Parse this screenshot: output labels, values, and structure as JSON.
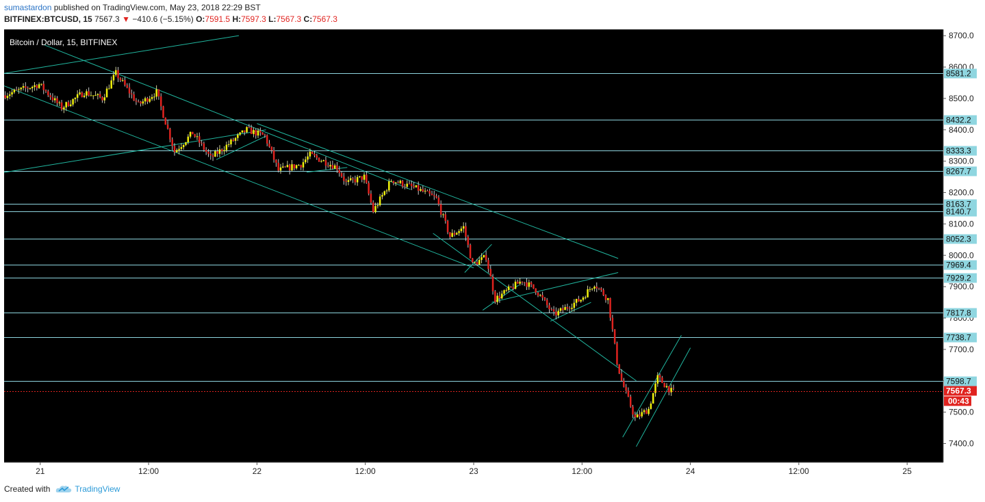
{
  "header": {
    "author": "sumastardon",
    "published_text": "published on TradingView.com, May 23, 2018 22:29 BST",
    "symbol": "BITFINEX:BTCUSD, 15",
    "last": "7567.3",
    "change": "−410.6 (−5.15%)",
    "o_label": "O:",
    "o": "7591.5",
    "h_label": "H:",
    "h": "7597.3",
    "l_label": "L:",
    "l": "7567.3",
    "c_label": "C:",
    "c": "7567.3"
  },
  "footer": {
    "created_with": "Created with",
    "brand": "TradingView"
  },
  "colors": {
    "background": "#000000",
    "up": "#f2f20a",
    "down": "#e0231f",
    "level_line": "#8fd6e0",
    "trend_line": "#21b7a0",
    "price_badge": "#e0231f",
    "level_label_bg": "#8fd6e0"
  },
  "chart_data": {
    "type": "candlestick",
    "title": "Bitcoin / Dollar, 15, BITFINEX",
    "ylim": [
      7340,
      8720
    ],
    "yticks": [
      7400,
      7500,
      7600,
      7700,
      7800,
      7900,
      8000,
      8100,
      8200,
      8300,
      8400,
      8500,
      8600,
      8700
    ],
    "ytick_labels": [
      "7400.0",
      "7500.0",
      "7600.0",
      "7700.0",
      "7800.0",
      "7900.0",
      "8000.0",
      "8100.0",
      "8200.0",
      "8300.0",
      "8400.0",
      "8500.0",
      "8600.0",
      "8700.0"
    ],
    "x_start": "2018-05-20T20:00",
    "x_end": "2018-05-25T04:00",
    "xticks": [
      {
        "t": "2018-05-21T00:00",
        "label": "21"
      },
      {
        "t": "2018-05-21T12:00",
        "label": "12:00"
      },
      {
        "t": "2018-05-22T00:00",
        "label": "22"
      },
      {
        "t": "2018-05-22T12:00",
        "label": "12:00"
      },
      {
        "t": "2018-05-23T00:00",
        "label": "23"
      },
      {
        "t": "2018-05-23T12:00",
        "label": "12:00"
      },
      {
        "t": "2018-05-24T00:00",
        "label": "24"
      },
      {
        "t": "2018-05-24T12:00",
        "label": "12:00"
      },
      {
        "t": "2018-05-25T00:00",
        "label": "25"
      }
    ],
    "levels": [
      {
        "value": 8581.2,
        "label": "8581.2"
      },
      {
        "value": 8432.2,
        "label": "8432.2"
      },
      {
        "value": 8333.3,
        "label": "8333.3"
      },
      {
        "value": 8267.7,
        "label": "8267.7"
      },
      {
        "value": 8163.7,
        "label": "8163.7"
      },
      {
        "value": 8140.7,
        "label": "8140.7"
      },
      {
        "value": 8052.3,
        "label": "8052.3"
      },
      {
        "value": 7969.4,
        "label": "7969.4"
      },
      {
        "value": 7929.2,
        "label": "7929.2"
      },
      {
        "value": 7817.8,
        "label": "7817.8"
      },
      {
        "value": 7738.7,
        "label": "7738.7"
      },
      {
        "value": 7598.7,
        "label": "7598.7"
      }
    ],
    "last_price": {
      "value": 7567.3,
      "label": "7567.3",
      "countdown": "00:43"
    },
    "trend_lines": [
      {
        "t1": "2018-05-20T20:00",
        "p1": 8580,
        "t2": "2018-05-21T22:00",
        "p2": 8700
      },
      {
        "t1": "2018-05-20T20:00",
        "p1": 8264,
        "t2": "2018-05-22T01:00",
        "p2": 8400
      },
      {
        "t1": "2018-05-21T00:30",
        "p1": 8670,
        "t2": "2018-05-22T17:00",
        "p2": 8210
      },
      {
        "t1": "2018-05-20T20:00",
        "p1": 8540,
        "t2": "2018-05-23T00:00",
        "p2": 7960
      },
      {
        "t1": "2018-05-22T00:00",
        "p1": 8420,
        "t2": "2018-05-23T16:00",
        "p2": 7990
      },
      {
        "t1": "2018-05-22T19:30",
        "p1": 8070,
        "t2": "2018-05-23T18:00",
        "p2": 7600
      },
      {
        "t1": "2018-05-21T19:30",
        "p1": 8305,
        "t2": "2018-05-22T01:00",
        "p2": 8380
      },
      {
        "t1": "2018-05-22T05:30",
        "p1": 8265,
        "t2": "2018-05-22T10:00",
        "p2": 8280
      },
      {
        "t1": "2018-05-22T23:00",
        "p1": 7945,
        "t2": "2018-05-23T02:00",
        "p2": 8035
      },
      {
        "t1": "2018-05-23T01:00",
        "p1": 7825,
        "t2": "2018-05-23T05:00",
        "p2": 7905
      },
      {
        "t1": "2018-05-23T02:00",
        "p1": 7850,
        "t2": "2018-05-23T16:00",
        "p2": 7945
      },
      {
        "t1": "2018-05-23T08:30",
        "p1": 7790,
        "t2": "2018-05-23T13:00",
        "p2": 7850
      },
      {
        "t1": "2018-05-23T16:30",
        "p1": 7420,
        "t2": "2018-05-23T23:00",
        "p2": 7745
      },
      {
        "t1": "2018-05-23T18:00",
        "p1": 7390,
        "t2": "2018-05-24T00:00",
        "p2": 7705
      }
    ],
    "price_path": [
      {
        "t": "2018-05-20T20:00",
        "p": 8510
      },
      {
        "t": "2018-05-21T00:00",
        "p": 8545
      },
      {
        "t": "2018-05-21T02:30",
        "p": 8470
      },
      {
        "t": "2018-05-21T05:00",
        "p": 8520
      },
      {
        "t": "2018-05-21T07:00",
        "p": 8500
      },
      {
        "t": "2018-05-21T08:30",
        "p": 8580
      },
      {
        "t": "2018-05-21T11:00",
        "p": 8480
      },
      {
        "t": "2018-05-21T13:00",
        "p": 8520
      },
      {
        "t": "2018-05-21T15:00",
        "p": 8330
      },
      {
        "t": "2018-05-21T17:00",
        "p": 8390
      },
      {
        "t": "2018-05-21T19:00",
        "p": 8310
      },
      {
        "t": "2018-05-21T23:00",
        "p": 8400
      },
      {
        "t": "2018-05-22T01:00",
        "p": 8380
      },
      {
        "t": "2018-05-22T02:30",
        "p": 8270
      },
      {
        "t": "2018-05-22T05:00",
        "p": 8290
      },
      {
        "t": "2018-05-22T06:00",
        "p": 8320
      },
      {
        "t": "2018-05-22T09:00",
        "p": 8280
      },
      {
        "t": "2018-05-22T10:00",
        "p": 8230
      },
      {
        "t": "2018-05-22T12:00",
        "p": 8250
      },
      {
        "t": "2018-05-22T13:00",
        "p": 8140
      },
      {
        "t": "2018-05-22T15:00",
        "p": 8240
      },
      {
        "t": "2018-05-22T18:00",
        "p": 8210
      },
      {
        "t": "2018-05-22T20:00",
        "p": 8180
      },
      {
        "t": "2018-05-22T21:30",
        "p": 8060
      },
      {
        "t": "2018-05-22T23:00",
        "p": 8090
      },
      {
        "t": "2018-05-23T00:00",
        "p": 7970
      },
      {
        "t": "2018-05-23T01:30",
        "p": 7995
      },
      {
        "t": "2018-05-23T02:30",
        "p": 7860
      },
      {
        "t": "2018-05-23T05:30",
        "p": 7920
      },
      {
        "t": "2018-05-23T07:00",
        "p": 7890
      },
      {
        "t": "2018-05-23T09:00",
        "p": 7810
      },
      {
        "t": "2018-05-23T12:00",
        "p": 7860
      },
      {
        "t": "2018-05-23T13:30",
        "p": 7910
      },
      {
        "t": "2018-05-23T15:00",
        "p": 7860
      },
      {
        "t": "2018-05-23T16:00",
        "p": 7660
      },
      {
        "t": "2018-05-23T16:30",
        "p": 7600
      },
      {
        "t": "2018-05-23T18:00",
        "p": 7480
      },
      {
        "t": "2018-05-23T19:30",
        "p": 7510
      },
      {
        "t": "2018-05-23T20:30",
        "p": 7610
      },
      {
        "t": "2018-05-23T22:00",
        "p": 7567
      }
    ]
  }
}
